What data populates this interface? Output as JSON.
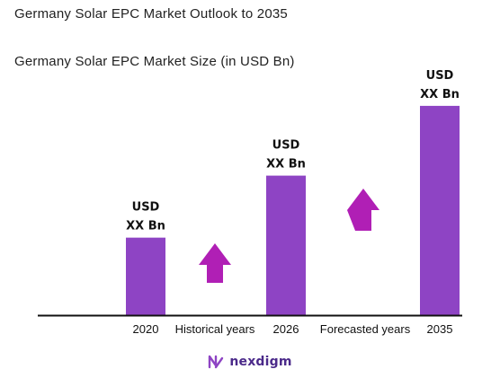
{
  "header": {
    "title": "Germany Solar EPC Market Outlook to 2035",
    "subtitle": "Germany Solar EPC Market Size (in USD Bn)"
  },
  "chart_data": {
    "type": "bar",
    "categories": [
      "2020",
      "2026",
      "2035"
    ],
    "values": [
      1,
      1.8,
      2.7
    ],
    "value_labels": [
      [
        "USD",
        "XX Bn"
      ],
      [
        "USD",
        "XX Bn"
      ],
      [
        "USD",
        "XX Bn"
      ]
    ],
    "period_labels": [
      "Historical years",
      "Forecasted years"
    ],
    "title": "Germany Solar EPC Market Size (in USD Bn)",
    "xlabel": "",
    "ylabel": "",
    "ylim": [
      0,
      3
    ],
    "grid": false,
    "legend": "none",
    "bar_color": "#8e44c4",
    "arrow_color": "#b01fb5"
  },
  "logo": {
    "text": "nexdigm",
    "color": "#4b2a8a",
    "mark_color": "#8e44c4"
  }
}
